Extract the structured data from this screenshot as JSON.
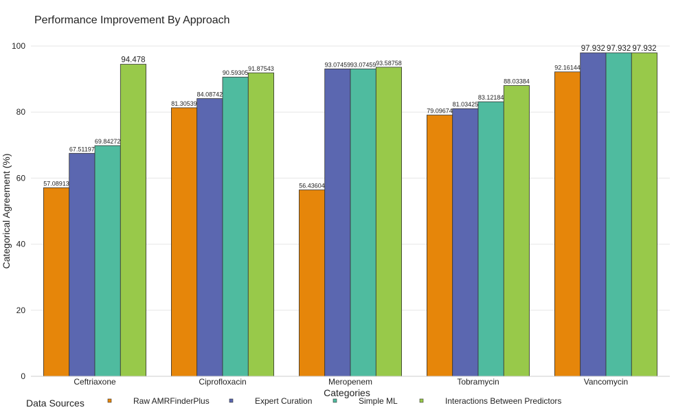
{
  "chart_data": {
    "type": "bar",
    "title": "Performance Improvement By Approach",
    "xlabel": "Categories",
    "ylabel": "Categorical Agreement (%)",
    "ylim": [
      0,
      100
    ],
    "yticks": [
      0,
      20,
      40,
      60,
      80,
      100
    ],
    "grid": true,
    "legend_title": "Data Sources",
    "legend_position": "bottom",
    "categories": [
      "Ceftriaxone",
      "Ciprofloxacin",
      "Meropenem",
      "Tobramycin",
      "Vancomycin"
    ],
    "series": [
      {
        "name": "Raw AMRFinderPlus",
        "color": "#e6860a",
        "values": [
          57.08913,
          81.30539,
          56.43604,
          79.09674,
          92.16144
        ],
        "labels": [
          "57.08913",
          "81.30539",
          "56.43604",
          "79.09674",
          "92.16144"
        ]
      },
      {
        "name": "Expert Curation",
        "color": "#5b67b0",
        "values": [
          67.51197,
          84.08742,
          93.07459,
          81.03425,
          97.932
        ],
        "labels": [
          "67.51197",
          "84.08742",
          "93.07459",
          "81.03425",
          "97.932"
        ]
      },
      {
        "name": "Simple ML",
        "color": "#4fbb9f",
        "values": [
          69.84272,
          90.59305,
          93.07459,
          83.12184,
          97.932
        ],
        "labels": [
          "69.84272",
          "90.59305",
          "93.07459",
          "83.12184",
          "97.932"
        ]
      },
      {
        "name": "Interactions Between Predictors",
        "color": "#98c94a",
        "values": [
          94.478,
          91.87543,
          93.58758,
          88.03384,
          97.932
        ],
        "labels": [
          "94.478",
          "91.87543",
          "93.58758",
          "88.03384",
          "97.932"
        ]
      }
    ]
  }
}
